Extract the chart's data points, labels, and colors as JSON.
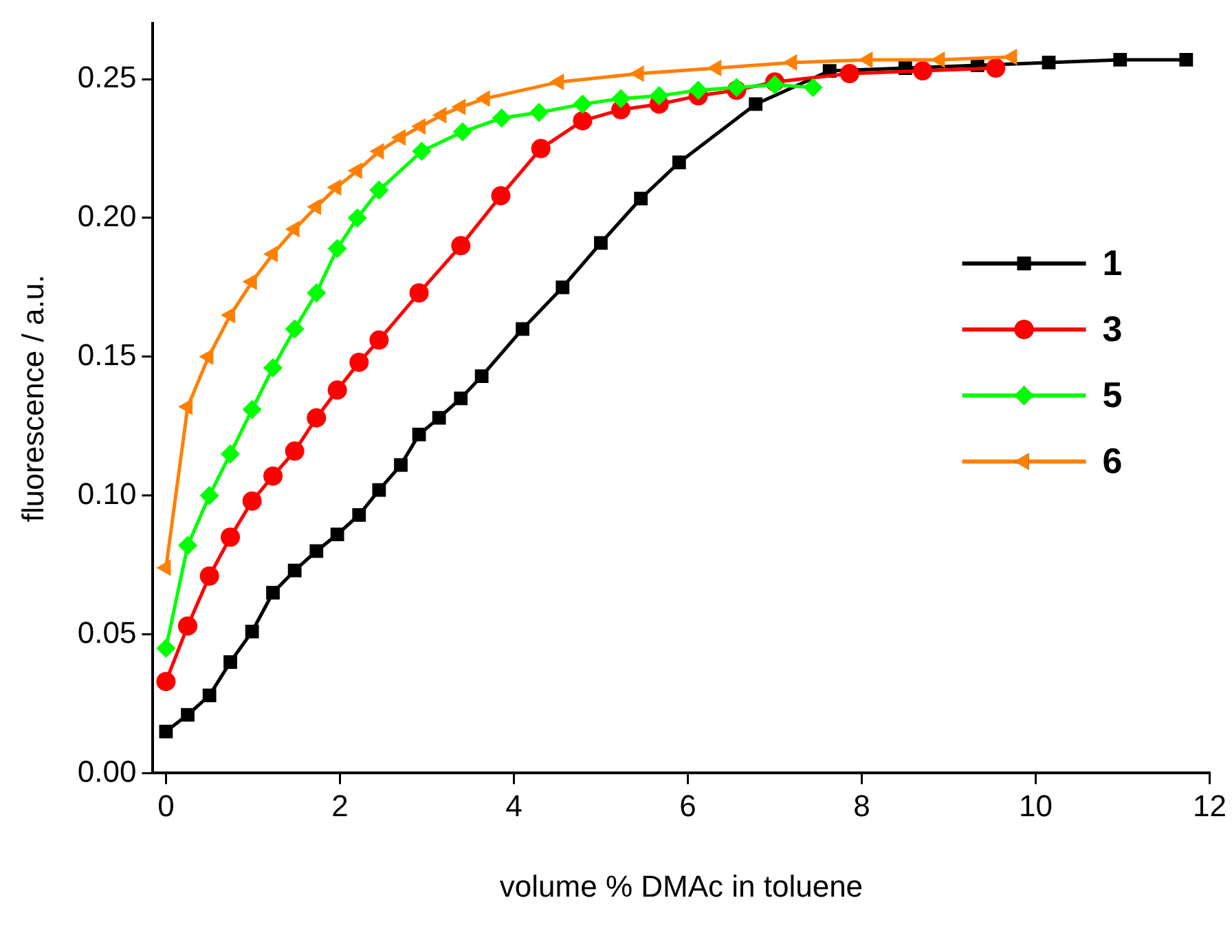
{
  "chart_data": {
    "type": "line",
    "xlabel": "volume % DMAc in toluene",
    "ylabel": "fluorescence / a.u.",
    "xlim": [
      -0.15,
      12
    ],
    "xticks": [
      0,
      2,
      4,
      6,
      8,
      10,
      12
    ],
    "ylim": [
      0,
      0.27
    ],
    "yticks": [
      {
        "value": 0,
        "label": "0.00"
      },
      {
        "value": 0.05,
        "label": "0.05"
      },
      {
        "value": 0.1,
        "label": "0.10"
      },
      {
        "value": 0.15,
        "label": "0.15"
      },
      {
        "value": 0.2,
        "label": "0.20"
      },
      {
        "value": 0.25,
        "label": "0.25"
      }
    ],
    "grid": false,
    "legend": "right",
    "line_style": "solid",
    "series": [
      {
        "name": "1",
        "color": "#000000",
        "marker": "square",
        "x": [
          0,
          0.25,
          0.5,
          0.74,
          0.99,
          1.23,
          1.48,
          1.73,
          1.97,
          2.22,
          2.45,
          2.7,
          2.91,
          3.14,
          3.39,
          3.63,
          4.1,
          4.56,
          5.0,
          5.46,
          5.9,
          6.78,
          7.63,
          8.5,
          9.33,
          10.15,
          10.97,
          11.73
        ],
        "values": [
          0.015,
          0.021,
          0.028,
          0.04,
          0.051,
          0.065,
          0.073,
          0.08,
          0.086,
          0.093,
          0.102,
          0.111,
          0.122,
          0.128,
          0.135,
          0.143,
          0.16,
          0.175,
          0.191,
          0.207,
          0.22,
          0.241,
          0.253,
          0.254,
          0.255,
          0.256,
          0.257,
          0.257
        ]
      },
      {
        "name": "3",
        "color": "#ff0000",
        "marker": "circle",
        "x": [
          0,
          0.25,
          0.5,
          0.74,
          0.99,
          1.23,
          1.48,
          1.73,
          1.97,
          2.22,
          2.45,
          2.91,
          3.39,
          3.85,
          4.31,
          4.79,
          5.23,
          5.67,
          6.12,
          6.56,
          7.0,
          7.86,
          8.7,
          9.54
        ],
        "values": [
          0.033,
          0.053,
          0.071,
          0.085,
          0.098,
          0.107,
          0.116,
          0.128,
          0.138,
          0.148,
          0.156,
          0.173,
          0.19,
          0.208,
          0.225,
          0.235,
          0.239,
          0.241,
          0.244,
          0.246,
          0.249,
          0.252,
          0.253,
          0.254
        ]
      },
      {
        "name": "5",
        "color": "#00ff00",
        "marker": "diamond",
        "x": [
          0,
          0.25,
          0.5,
          0.74,
          0.99,
          1.23,
          1.48,
          1.73,
          1.97,
          2.2,
          2.45,
          2.94,
          3.41,
          3.86,
          4.29,
          4.79,
          5.23,
          5.67,
          6.12,
          6.56,
          7.0,
          7.44
        ],
        "values": [
          0.045,
          0.082,
          0.1,
          0.115,
          0.131,
          0.146,
          0.16,
          0.173,
          0.189,
          0.2,
          0.21,
          0.224,
          0.231,
          0.236,
          0.238,
          0.241,
          0.243,
          0.244,
          0.246,
          0.247,
          0.248,
          0.247
        ]
      },
      {
        "name": "6",
        "color": "#ff8000",
        "marker": "triangle",
        "x": [
          0,
          0.25,
          0.49,
          0.74,
          0.99,
          1.23,
          1.48,
          1.73,
          1.96,
          2.2,
          2.45,
          2.7,
          2.93,
          3.17,
          3.39,
          3.67,
          4.52,
          5.44,
          6.33,
          7.2,
          8.07,
          8.9,
          9.73
        ],
        "values": [
          0.074,
          0.132,
          0.15,
          0.165,
          0.177,
          0.187,
          0.196,
          0.204,
          0.211,
          0.217,
          0.224,
          0.229,
          0.233,
          0.237,
          0.24,
          0.243,
          0.249,
          0.252,
          0.254,
          0.256,
          0.257,
          0.257,
          0.258
        ]
      }
    ]
  }
}
